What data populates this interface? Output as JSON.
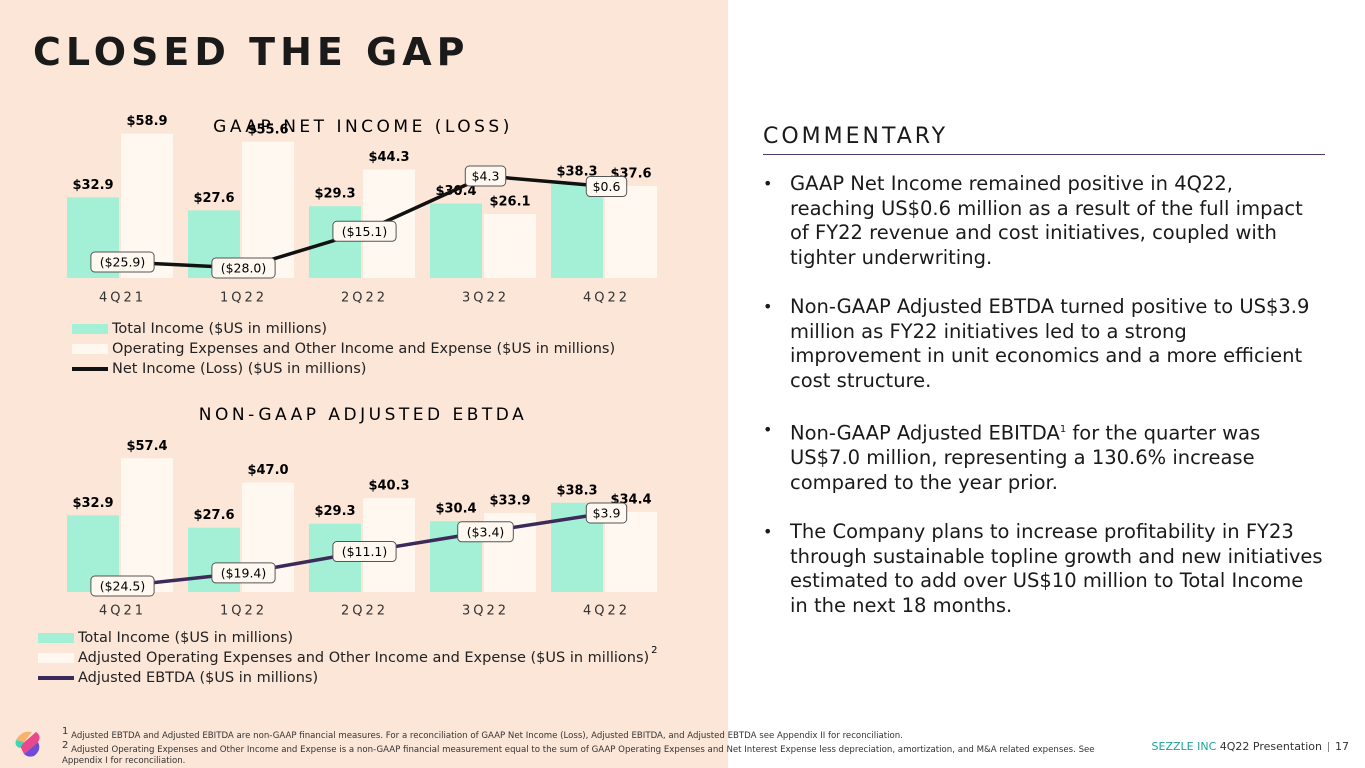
{
  "title": "CLOSED THE GAP",
  "chart_data": [
    {
      "type": "bar",
      "title": "GAAP NET INCOME (LOSS)",
      "categories": [
        "4Q21",
        "1Q22",
        "2Q22",
        "3Q22",
        "4Q22"
      ],
      "series": [
        {
          "name": "Total Income ($US in millions)",
          "color": "#a3f0d6",
          "values": [
            32.9,
            27.6,
            29.3,
            30.4,
            38.3
          ],
          "value_labels": [
            "$32.9",
            "$27.6",
            "$29.3",
            "$30.4",
            "$38.3"
          ]
        },
        {
          "name": "Operating Expenses and Other Income and Expense ($US in millions)",
          "color": "#fff8f1",
          "values": [
            58.9,
            55.6,
            44.3,
            26.1,
            37.6
          ],
          "value_labels": [
            "$58.9",
            "$55.6",
            "$44.3",
            "$26.1",
            "$37.6"
          ]
        },
        {
          "name": "Net Income (Loss) ($US in millions)",
          "type": "line",
          "color": "#111111",
          "values": [
            -25.9,
            -28.0,
            -15.1,
            4.3,
            0.6
          ],
          "value_labels": [
            "($25.9)",
            "($28.0)",
            "($15.1)",
            "$4.3",
            "$0.6"
          ]
        }
      ]
    },
    {
      "type": "bar",
      "title": "NON-GAAP ADJUSTED EBTDA",
      "legend_note": "2",
      "categories": [
        "4Q21",
        "1Q22",
        "2Q22",
        "3Q22",
        "4Q22"
      ],
      "series": [
        {
          "name": "Total Income ($US in millions)",
          "color": "#a3f0d6",
          "values": [
            32.9,
            27.6,
            29.3,
            30.4,
            38.3
          ],
          "value_labels": [
            "$32.9",
            "$27.6",
            "$29.3",
            "$30.4",
            "$38.3"
          ]
        },
        {
          "name": "Adjusted Operating Expenses and Other Income and Expense ($US in millions)",
          "color": "#fff8f1",
          "values": [
            57.4,
            47.0,
            40.3,
            33.9,
            34.4
          ],
          "value_labels": [
            "$57.4",
            "$47.0",
            "$40.3",
            "$33.9",
            "$34.4"
          ]
        },
        {
          "name": "Adjusted EBTDA ($US in millions)",
          "type": "line",
          "color": "#3b2a5a",
          "values": [
            -24.5,
            -19.4,
            -11.1,
            -3.4,
            3.9
          ],
          "value_labels": [
            "($24.5)",
            "($19.4)",
            "($11.1)",
            "($3.4)",
            "$3.9"
          ]
        }
      ]
    }
  ],
  "commentary": {
    "title": "COMMENTARY",
    "bullets": [
      [
        "GAAP Net Income remained positive in 4Q22, reaching US$0.6 million as a result of the full impact of FY22 revenue and cost initiatives, coupled with tighter underwriting."
      ],
      [
        "Non-GAAP Adjusted EBTDA turned positive to US$3.9 million as FY22 initiatives led to a strong improvement in unit economics and a more efficient cost structure."
      ],
      [
        "Non-GAAP Adjusted EBITDA",
        "1",
        " for the quarter was US$7.0 million, representing a 130.6% increase compared to the year prior."
      ],
      [
        "The Company plans to increase profitability in FY23 through sustainable topline growth and new initiatives estimated to add over US$10 million to Total Income in the next 18 months."
      ]
    ]
  },
  "footnotes": [
    {
      "mark": "1",
      "text": "Adjusted EBTDA and Adjusted EBITDA are non-GAAP financial measures. For a reconciliation of GAAP Net Income (Loss), Adjusted EBITDA, and Adjusted EBTDA see Appendix II for reconciliation."
    },
    {
      "mark": "2",
      "text": "Adjusted Operating Expenses and Other Income and Expense is a non-GAAP financial measurement equal to the sum of GAAP Operating Expenses and Net Interest Expense less depreciation, amortization, and M&A related expenses. See Appendix I for reconciliation."
    }
  ],
  "footer": {
    "company": "SEZZLE INC",
    "presentation": "4Q22 Presentation",
    "page": "17"
  }
}
